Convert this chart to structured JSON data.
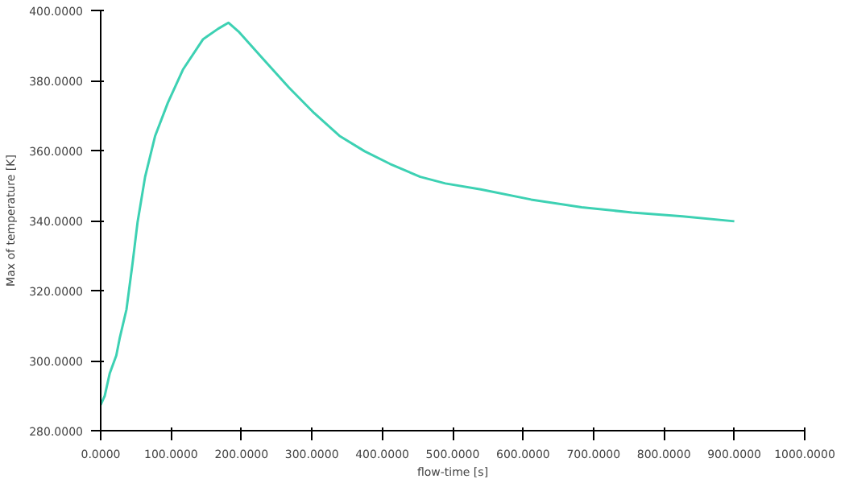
{
  "chart_data": {
    "type": "line",
    "xlabel": "flow-time [s]",
    "ylabel": "Max of temperature [K]",
    "x": [
      0,
      5.7,
      12.9,
      22.2,
      27.2,
      36.6,
      45.2,
      52.3,
      63.1,
      77.4,
      95.3,
      116.8,
      145.5,
      167,
      181.4,
      195.7,
      231.5,
      267.4,
      303.2,
      339.1,
      374.9,
      410.8,
      453.8,
      489.6,
      539.8,
      611.5,
      683.2,
      754.8,
      826.5,
      900
    ],
    "series": [
      {
        "color": "#3dd1b3",
        "values": [
          287.4,
          289.9,
          296.4,
          301.5,
          306.6,
          314.6,
          327.7,
          339.4,
          352.5,
          364.2,
          373.6,
          383.1,
          391.8,
          394.8,
          396.5,
          394.0,
          386.0,
          378.0,
          370.7,
          364.2,
          359.8,
          356.2,
          352.5,
          350.6,
          348.9,
          346.0,
          343.8,
          342.3,
          341.2,
          339.8
        ]
      }
    ],
    "xlim": [
      0,
      1000
    ],
    "ylim": [
      280,
      400
    ],
    "xticks": [
      {
        "value": 0,
        "label": "0.0000"
      },
      {
        "value": 100,
        "label": "100.0000"
      },
      {
        "value": 200,
        "label": "200.0000"
      },
      {
        "value": 300,
        "label": "300.0000"
      },
      {
        "value": 400,
        "label": "400.0000"
      },
      {
        "value": 500,
        "label": "500.0000"
      },
      {
        "value": 600,
        "label": "600.0000"
      },
      {
        "value": 700,
        "label": "700.0000"
      },
      {
        "value": 800,
        "label": "800.0000"
      },
      {
        "value": 900,
        "label": "900.0000"
      },
      {
        "value": 1000,
        "label": "1000.0000"
      }
    ],
    "yticks": [
      {
        "value": 280,
        "label": "280.0000"
      },
      {
        "value": 300,
        "label": "300.0000"
      },
      {
        "value": 320,
        "label": "320.0000"
      },
      {
        "value": 340,
        "label": "340.0000"
      },
      {
        "value": 360,
        "label": "360.0000"
      },
      {
        "value": 380,
        "label": "380.0000"
      },
      {
        "value": 400,
        "label": "400.0000"
      }
    ],
    "grid": false,
    "marker": "none",
    "line_style": "solid"
  }
}
